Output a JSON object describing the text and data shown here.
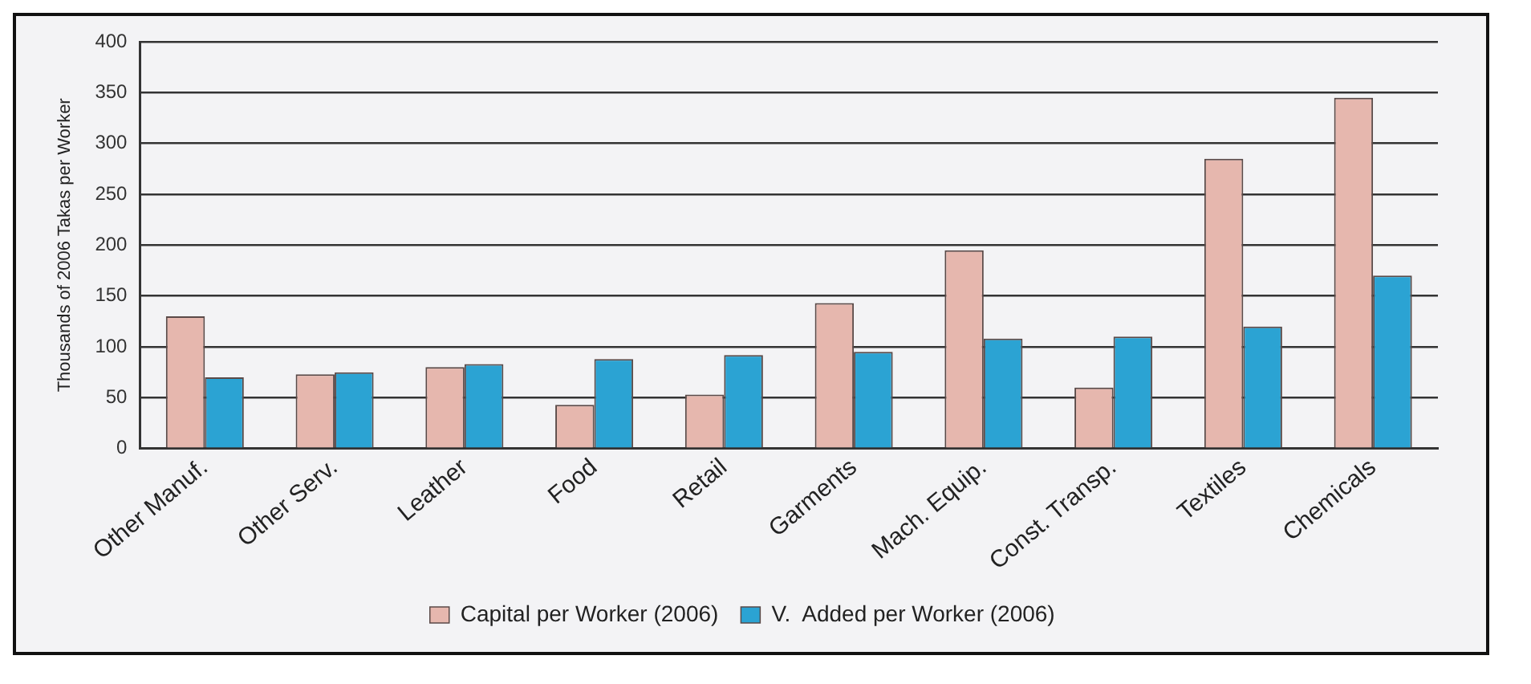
{
  "chart_data": {
    "type": "bar",
    "ylabel": "Thousands of 2006 Takas per Worker",
    "categories": [
      "Other Manuf.",
      "Other Serv.",
      "Leather",
      "Food",
      "Retail",
      "Garments",
      "Mach. Equip.",
      "Const. Transp.",
      "Textiles",
      "Chemicals"
    ],
    "series": [
      {
        "name": "Capital per Worker (2006)",
        "color": "#e6b7ae",
        "values": [
          130,
          73,
          80,
          43,
          53,
          143,
          195,
          60,
          285,
          345
        ]
      },
      {
        "name": "V.  Added per Worker (2006)",
        "color": "#2ba3d3",
        "values": [
          70,
          75,
          83,
          88,
          92,
          95,
          108,
          110,
          120,
          170
        ]
      }
    ],
    "ylim": [
      0,
      400
    ],
    "yticks": [
      0,
      50,
      100,
      150,
      200,
      250,
      300,
      350,
      400
    ],
    "grid": "y",
    "legend": "bottom"
  }
}
